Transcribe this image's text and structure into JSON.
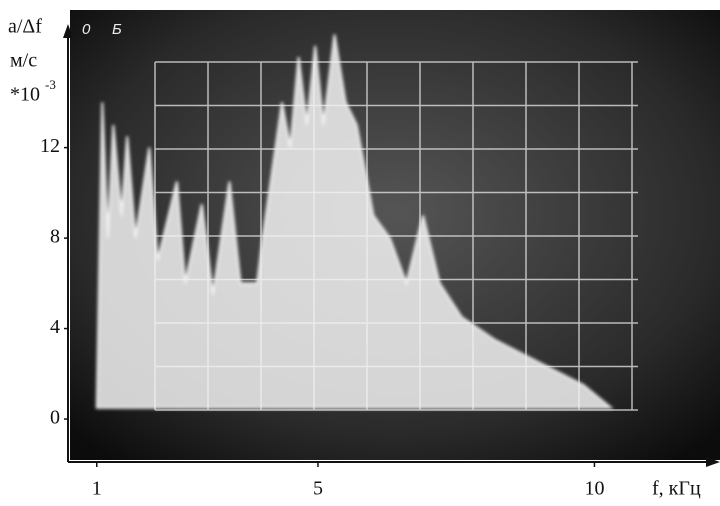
{
  "chart_data": {
    "type": "area",
    "y_label_lines": [
      "a/Δf",
      "м/с",
      "*10"
    ],
    "y_label_exponent": "-3",
    "x_label": "f, кГц",
    "x": [
      1.0,
      1.1,
      1.2,
      1.3,
      1.45,
      1.55,
      1.7,
      1.95,
      2.1,
      2.45,
      2.6,
      2.9,
      3.1,
      3.4,
      3.6,
      3.9,
      4.0,
      4.35,
      4.5,
      4.65,
      4.8,
      4.95,
      5.1,
      5.3,
      5.5,
      5.7,
      6.0,
      6.3,
      6.6,
      6.9,
      7.2,
      7.6,
      8.2,
      9.0,
      9.8,
      10.3
    ],
    "series": [
      {
        "color": "#f2f2f2",
        "values": [
          0.5,
          14,
          8,
          13,
          9,
          12.5,
          8,
          12,
          7,
          10.5,
          6,
          9.5,
          5.5,
          10.5,
          6,
          6,
          8,
          14,
          12,
          16,
          13,
          16.5,
          13,
          17,
          14,
          13,
          9,
          8,
          6,
          9,
          6,
          4.5,
          3.5,
          2.5,
          1.5,
          0.5
        ]
      }
    ],
    "xlim": [
      0.48,
      12.18
    ],
    "ylim": [
      -1.9,
      17.2
    ],
    "xticks": [
      1,
      5,
      10
    ],
    "yticks": [
      0,
      4,
      8,
      12
    ]
  }
}
